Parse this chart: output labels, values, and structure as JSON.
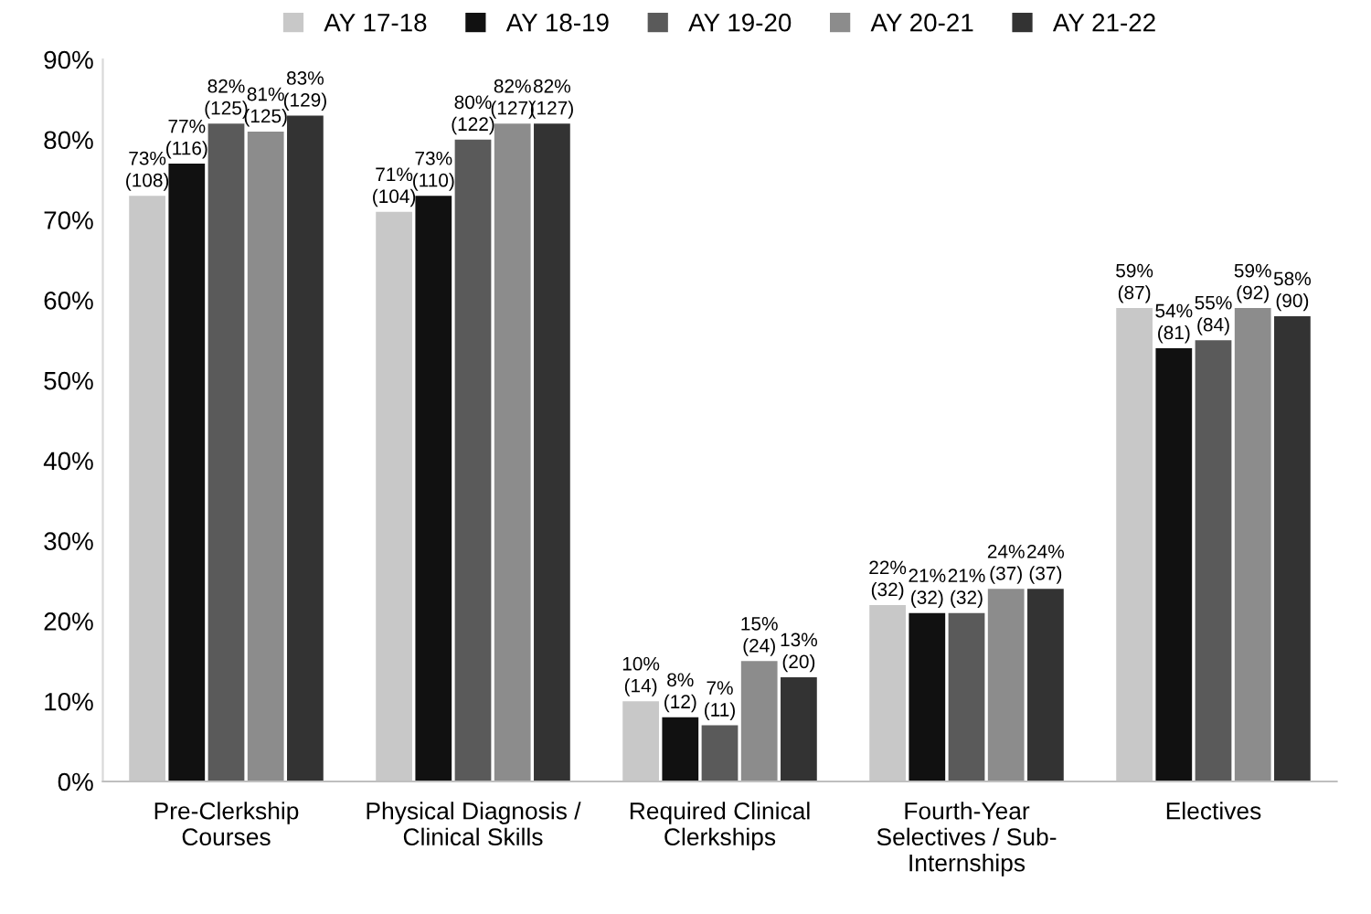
{
  "chart_data": {
    "type": "bar",
    "categories": [
      "Pre-Clerkship\nCourses",
      "Physical Diagnosis /\nClinical Skills",
      "Required Clinical\nClerkships",
      "Fourth-Year\nSelectives / Sub-\nInternships",
      "Electives"
    ],
    "series": [
      {
        "name": "AY 17-18",
        "color": "#c8c8c8",
        "values": [
          73,
          71,
          10,
          22,
          59
        ],
        "value_labels": [
          "73%\n(108)",
          "71%\n(104)",
          "10%\n(14)",
          "22%\n(32)",
          "59%\n(87)"
        ]
      },
      {
        "name": "AY 18-19",
        "color": "#111111",
        "values": [
          77,
          73,
          8,
          21,
          54
        ],
        "value_labels": [
          "77%\n(116)",
          "73%\n(110)",
          "8%\n(12)",
          "21%\n(32)",
          "54%\n(81)"
        ]
      },
      {
        "name": "AY 19-20",
        "color": "#5a5a5a",
        "values": [
          82,
          80,
          7,
          21,
          55
        ],
        "value_labels": [
          "82%\n(125)",
          "80%\n(122)",
          "7%\n(11)",
          "21%\n(32)",
          "55%\n(84)"
        ]
      },
      {
        "name": "AY 20-21",
        "color": "#8c8c8c",
        "values": [
          81,
          82,
          15,
          24,
          59
        ],
        "value_labels": [
          "81%\n(125)",
          "82%\n(127)",
          "15%\n(24)",
          "24%\n(37)",
          "59%\n(92)"
        ]
      },
      {
        "name": "AY 21-22",
        "color": "#333333",
        "values": [
          83,
          82,
          13,
          24,
          58
        ],
        "value_labels": [
          "83%\n(129)",
          "82%\n(127)",
          "13%\n(20)",
          "24%\n(37)",
          "58%\n(90)"
        ]
      }
    ],
    "ylim": [
      0,
      90
    ],
    "yticks": [
      {
        "value": 0,
        "label": "0%"
      },
      {
        "value": 10,
        "label": "10%"
      },
      {
        "value": 20,
        "label": "20%"
      },
      {
        "value": 30,
        "label": "30%"
      },
      {
        "value": 40,
        "label": "40%"
      },
      {
        "value": 50,
        "label": "50%"
      },
      {
        "value": 60,
        "label": "60%"
      },
      {
        "value": 70,
        "label": "70%"
      },
      {
        "value": 80,
        "label": "80%"
      },
      {
        "value": 90,
        "label": "90%"
      }
    ],
    "grid": false,
    "legend": "top"
  }
}
